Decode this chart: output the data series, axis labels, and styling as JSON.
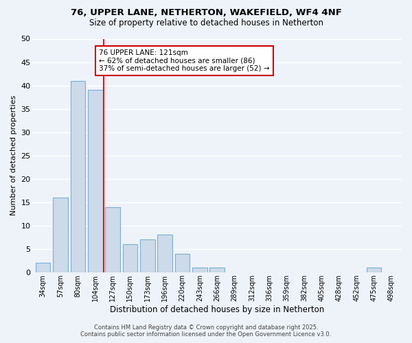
{
  "title": "76, UPPER LANE, NETHERTON, WAKEFIELD, WF4 4NF",
  "subtitle": "Size of property relative to detached houses in Netherton",
  "xlabel": "Distribution of detached houses by size in Netherton",
  "ylabel": "Number of detached properties",
  "categories": [
    "34sqm",
    "57sqm",
    "80sqm",
    "104sqm",
    "127sqm",
    "150sqm",
    "173sqm",
    "196sqm",
    "220sqm",
    "243sqm",
    "266sqm",
    "289sqm",
    "312sqm",
    "336sqm",
    "359sqm",
    "382sqm",
    "405sqm",
    "428sqm",
    "452sqm",
    "475sqm",
    "498sqm"
  ],
  "values": [
    2,
    16,
    41,
    39,
    14,
    6,
    7,
    8,
    4,
    1,
    1,
    0,
    0,
    0,
    0,
    0,
    0,
    0,
    0,
    1,
    0
  ],
  "bar_color": "#ccdaea",
  "bar_edge_color": "#7aafd4",
  "background_color": "#eef3f9",
  "grid_color": "#ffffff",
  "red_line_x": 3.5,
  "annotation_text": "76 UPPER LANE: 121sqm\n← 62% of detached houses are smaller (86)\n37% of semi-detached houses are larger (52) →",
  "annotation_box_color": "#ffffff",
  "annotation_box_edge_color": "#cc0000",
  "ylim": [
    0,
    50
  ],
  "yticks": [
    0,
    5,
    10,
    15,
    20,
    25,
    30,
    35,
    40,
    45,
    50
  ],
  "footer_line1": "Contains HM Land Registry data © Crown copyright and database right 2025.",
  "footer_line2": "Contains public sector information licensed under the Open Government Licence v3.0."
}
